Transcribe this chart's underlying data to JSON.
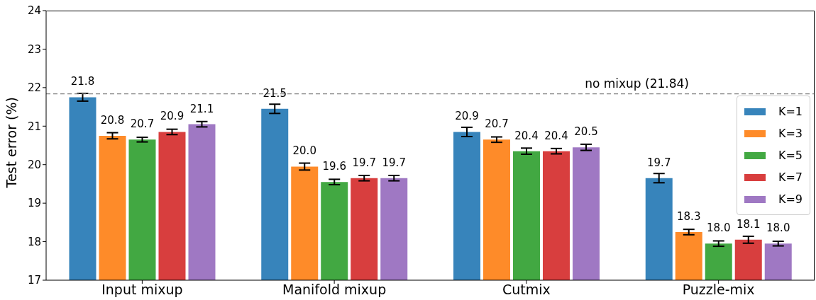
{
  "chart_data": {
    "type": "bar",
    "ylabel": "Test error (%)",
    "categories": [
      "Input mixup",
      "Manifold mixup",
      "Cutmix",
      "Puzzle-mix"
    ],
    "series": [
      {
        "name": "K=1",
        "color": "#3784bb",
        "values": [
          21.75,
          21.45,
          20.85,
          19.65
        ],
        "errors": [
          0.1,
          0.12,
          0.12,
          0.12
        ],
        "value_labels": [
          "21.8",
          "21.5",
          "20.9",
          "19.7"
        ]
      },
      {
        "name": "K=3",
        "color": "#fe8b29",
        "values": [
          20.75,
          19.95,
          20.65,
          18.25
        ],
        "errors": [
          0.08,
          0.09,
          0.07,
          0.07
        ],
        "value_labels": [
          "20.8",
          "20.0",
          "20.7",
          "18.3"
        ]
      },
      {
        "name": "K=5",
        "color": "#42a842",
        "values": [
          20.65,
          19.55,
          20.35,
          17.95
        ],
        "errors": [
          0.06,
          0.07,
          0.08,
          0.07
        ],
        "value_labels": [
          "20.7",
          "19.6",
          "20.4",
          "18.0"
        ]
      },
      {
        "name": "K=7",
        "color": "#d83e3e",
        "values": [
          20.85,
          19.65,
          20.35,
          18.05
        ],
        "errors": [
          0.07,
          0.07,
          0.07,
          0.09
        ],
        "value_labels": [
          "20.9",
          "19.7",
          "20.4",
          "18.1"
        ]
      },
      {
        "name": "K=9",
        "color": "#9f78c3",
        "values": [
          21.05,
          19.65,
          20.45,
          17.95
        ],
        "errors": [
          0.07,
          0.07,
          0.08,
          0.06
        ],
        "value_labels": [
          "21.1",
          "19.7",
          "20.5",
          "18.0"
        ]
      }
    ],
    "ylim": [
      17,
      24
    ],
    "yticks": [
      17,
      18,
      19,
      20,
      21,
      22,
      23,
      24
    ],
    "grid": false,
    "legend": "right",
    "ref_lines": [
      {
        "axis": "y",
        "value": 21.84,
        "label": "no mixup (21.84)",
        "color": "#808080",
        "line_style": "dashed"
      }
    ]
  }
}
